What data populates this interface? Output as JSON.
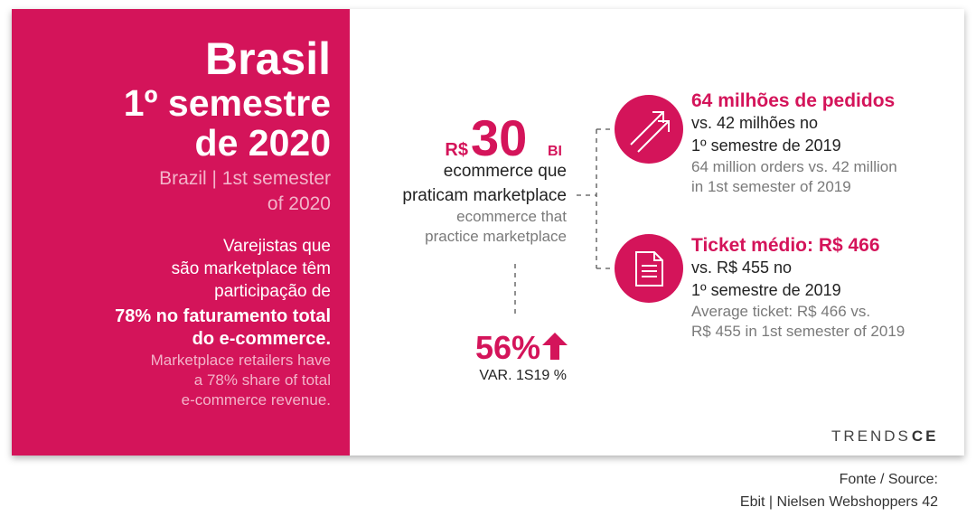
{
  "left": {
    "title": [
      "Brasil",
      "1º semestre",
      "de 2020"
    ],
    "subtitle": [
      "Brazil | 1st semester",
      "of 2020"
    ],
    "text_pt": [
      "Varejistas que",
      "são marketplace têm",
      "participação de"
    ],
    "text_pt_bold": [
      "78% no faturamento total",
      "do e-commerce."
    ],
    "text_en": [
      "Marketplace retailers have",
      "a 78% share of total",
      "e-commerce revenue."
    ]
  },
  "center": {
    "currency": "R$",
    "amount": "30",
    "unit": "BI",
    "label_pt": [
      "ecommerce que",
      "praticam marketplace"
    ],
    "label_en": [
      "ecommerce that",
      "practice marketplace"
    ],
    "variation": "56%",
    "variation_label": "VAR. 1S19 %"
  },
  "stats": [
    {
      "headline": "64 milhões de pedidos",
      "compare_pt": [
        "vs. 42 milhões no",
        "1º semestre de 2019"
      ],
      "compare_en": [
        "64 million orders vs. 42 million",
        "in 1st semester of 2019"
      ]
    },
    {
      "headline": "Ticket médio: R$ 466",
      "compare_pt": [
        "vs. R$ 455 no",
        "1º semestre de 2019"
      ],
      "compare_en": [
        "Average ticket: R$ 466 vs.",
        "R$ 455 in 1st semester of 2019"
      ]
    }
  ],
  "logo": {
    "light": "TRENDS",
    "bold": "CE"
  },
  "footer": [
    "Fonte / Source:",
    "Ebit | Nielsen Webshoppers 42"
  ]
}
